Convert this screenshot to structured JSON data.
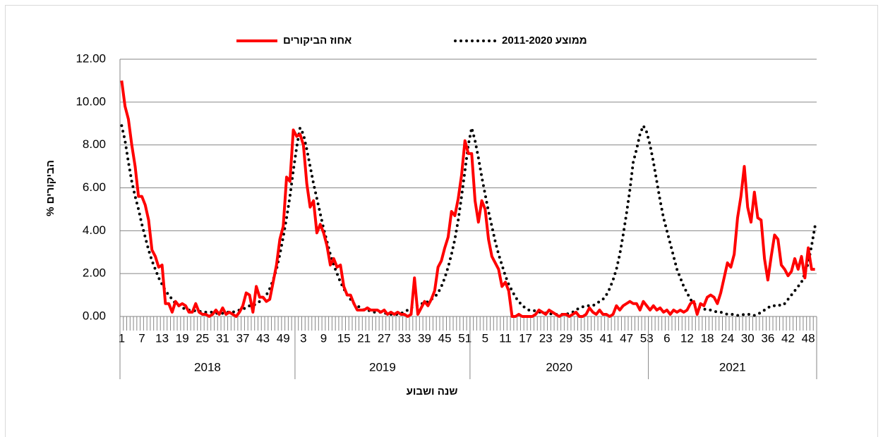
{
  "chart_data": {
    "type": "line",
    "legend_position": "top",
    "ylabel": "% הביקורים",
    "xlabel": "שנה  ושבוע",
    "ylim": [
      0,
      12
    ],
    "yticks": [
      {
        "value": 0,
        "label": "0.00"
      },
      {
        "value": 2,
        "label": "2.00"
      },
      {
        "value": 4,
        "label": "4.00"
      },
      {
        "value": 6,
        "label": "6.00"
      },
      {
        "value": 8,
        "label": "8.00"
      },
      {
        "value": 10,
        "label": "10.00"
      },
      {
        "value": 12,
        "label": "12.00"
      }
    ],
    "grid": true,
    "groups": [
      {
        "label": "2018",
        "categories": [
          1,
          null,
          null,
          null,
          null,
          null,
          7,
          null,
          null,
          null,
          null,
          null,
          13,
          null,
          null,
          null,
          null,
          null,
          19,
          null,
          null,
          null,
          null,
          null,
          25,
          null,
          null,
          null,
          null,
          null,
          31,
          null,
          null,
          null,
          null,
          null,
          37,
          null,
          null,
          null,
          null,
          null,
          43,
          null,
          null,
          null,
          null,
          null,
          49,
          null,
          null,
          null
        ]
      },
      {
        "label": "2019",
        "categories": [
          null,
          null,
          3,
          null,
          null,
          null,
          null,
          null,
          9,
          null,
          null,
          null,
          null,
          null,
          15,
          null,
          null,
          null,
          null,
          null,
          21,
          null,
          null,
          null,
          null,
          null,
          27,
          null,
          null,
          null,
          null,
          null,
          33,
          null,
          null,
          null,
          null,
          null,
          39,
          null,
          null,
          null,
          null,
          null,
          45,
          null,
          null,
          null,
          null,
          null,
          51,
          null
        ]
      },
      {
        "label": "2020",
        "categories": [
          null,
          null,
          null,
          null,
          5,
          null,
          null,
          null,
          null,
          null,
          11,
          null,
          null,
          null,
          null,
          null,
          17,
          null,
          null,
          null,
          null,
          null,
          23,
          null,
          null,
          null,
          null,
          null,
          29,
          null,
          null,
          null,
          null,
          null,
          35,
          null,
          null,
          null,
          null,
          null,
          41,
          null,
          null,
          null,
          null,
          null,
          47,
          null,
          null,
          null,
          null,
          null,
          53
        ]
      },
      {
        "label": "2021",
        "categories": [
          null,
          null,
          null,
          null,
          null,
          6,
          null,
          null,
          null,
          null,
          null,
          12,
          null,
          null,
          null,
          null,
          null,
          18,
          null,
          null,
          null,
          null,
          null,
          24,
          null,
          null,
          null,
          null,
          null,
          30,
          null,
          null,
          null,
          null,
          null,
          36,
          null,
          null,
          null,
          null,
          null,
          42,
          null,
          null,
          null,
          null,
          null,
          48,
          null,
          null
        ]
      }
    ],
    "series": [
      {
        "name": "אחוז הביקורים",
        "color": "#ff0000",
        "style": "solid",
        "values": [
          11.0,
          9.8,
          9.2,
          8.0,
          7.0,
          5.6,
          5.6,
          5.2,
          4.5,
          3.1,
          2.8,
          2.3,
          2.4,
          0.6,
          0.6,
          0.2,
          0.7,
          0.5,
          0.6,
          0.5,
          0.2,
          0.2,
          0.6,
          0.2,
          0.1,
          0.1,
          0.0,
          0.1,
          0.3,
          0.1,
          0.4,
          0.1,
          0.2,
          0.1,
          0.0,
          0.2,
          0.5,
          1.1,
          1.0,
          0.2,
          1.4,
          0.9,
          0.9,
          0.7,
          0.8,
          1.6,
          2.4,
          3.6,
          4.2,
          6.5,
          6.3,
          8.7,
          8.4,
          8.5,
          8.0,
          6.2,
          5.1,
          5.4,
          3.9,
          4.3,
          3.9,
          3.3,
          2.4,
          2.7,
          2.3,
          2.4,
          1.4,
          1.0,
          1.0,
          0.6,
          0.3,
          0.3,
          0.3,
          0.4,
          0.3,
          0.3,
          0.3,
          0.2,
          0.3,
          0.1,
          0.2,
          0.1,
          0.2,
          0.1,
          0.1,
          0.0,
          0.1,
          1.8,
          0.1,
          0.4,
          0.7,
          0.5,
          0.8,
          1.2,
          2.3,
          2.6,
          3.2,
          3.7,
          4.9,
          4.7,
          5.5,
          6.6,
          8.2,
          7.6,
          7.6,
          5.4,
          4.4,
          5.4,
          5.0,
          3.6,
          2.8,
          2.5,
          2.2,
          1.4,
          1.6,
          1.2,
          0.0,
          0.0,
          0.1,
          0.0,
          0.0,
          0.0,
          0.0,
          0.1,
          0.3,
          0.2,
          0.1,
          0.3,
          0.2,
          0.1,
          0.0,
          0.1,
          0.1,
          0.0,
          0.1,
          0.2,
          0.0,
          0.0,
          0.1,
          0.4,
          0.2,
          0.1,
          0.3,
          0.1,
          0.1,
          0.0,
          0.1,
          0.5,
          0.3,
          0.5,
          0.6,
          0.7,
          0.6,
          0.6,
          0.3,
          0.7,
          0.5,
          0.3,
          0.5,
          0.3,
          0.4,
          0.2,
          0.3,
          0.1,
          0.3,
          0.2,
          0.3,
          0.2,
          0.3,
          0.6,
          0.7,
          0.1,
          0.6,
          0.5,
          0.9,
          1.0,
          0.9,
          0.6,
          1.1,
          1.8,
          2.5,
          2.3,
          2.9,
          4.6,
          5.6,
          7.0,
          5.1,
          4.4,
          5.8,
          4.6,
          4.5,
          2.7,
          1.7,
          2.8,
          3.8,
          3.6,
          2.4,
          2.2,
          1.9,
          2.1,
          2.7,
          2.2,
          2.8,
          1.8,
          3.2,
          2.2,
          2.2
        ]
      },
      {
        "name": "ממוצע 2011-2020",
        "color": "#000000",
        "style": "dotted",
        "values": [
          8.9,
          8.2,
          7.2,
          6.3,
          5.6,
          5.0,
          4.3,
          3.7,
          3.1,
          2.6,
          2.2,
          1.8,
          1.5,
          1.2,
          1.0,
          0.8,
          0.6,
          0.5,
          0.4,
          0.35,
          0.3,
          0.3,
          0.25,
          0.25,
          0.2,
          0.2,
          0.2,
          0.2,
          0.15,
          0.15,
          0.15,
          0.2,
          0.2,
          0.2,
          0.25,
          0.3,
          0.35,
          0.4,
          0.5,
          0.5,
          0.6,
          0.7,
          0.8,
          1.0,
          1.3,
          1.7,
          2.2,
          2.9,
          3.7,
          4.6,
          5.6,
          6.8,
          7.9,
          8.8,
          8.5,
          7.8,
          7.0,
          6.2,
          5.5,
          4.8,
          4.1,
          3.5,
          2.9,
          2.4,
          2.0,
          1.6,
          1.3,
          1.0,
          0.8,
          0.6,
          0.5,
          0.4,
          0.3,
          0.3,
          0.25,
          0.2,
          0.2,
          0.2,
          0.15,
          0.15,
          0.1,
          0.1,
          0.1,
          0.15,
          0.2,
          0.3,
          0.4,
          0.5,
          0.5,
          0.6,
          0.6,
          0.7,
          0.8,
          0.9,
          1.1,
          1.4,
          1.8,
          2.3,
          2.9,
          3.6,
          4.5,
          5.6,
          6.8,
          8.0,
          8.8,
          8.2,
          7.4,
          6.5,
          5.7,
          4.9,
          4.2,
          3.5,
          2.9,
          2.4,
          1.9,
          1.5,
          1.2,
          0.9,
          0.7,
          0.5,
          0.4,
          0.3,
          0.3,
          0.25,
          0.2,
          0.2,
          0.15,
          0.15,
          0.1,
          0.1,
          0.1,
          0.1,
          0.1,
          0.15,
          0.2,
          0.3,
          0.4,
          0.45,
          0.5,
          0.5,
          0.5,
          0.6,
          0.7,
          0.8,
          1.0,
          1.3,
          1.7,
          2.2,
          2.9,
          3.8,
          4.8,
          5.9,
          7.2,
          7.8,
          8.5,
          8.9,
          8.6,
          8.0,
          7.2,
          6.3,
          5.4,
          4.6,
          4.0,
          3.4,
          2.8,
          2.2,
          1.8,
          1.4,
          1.1,
          0.8,
          0.6,
          0.5,
          0.4,
          0.35,
          0.3,
          0.3,
          0.25,
          0.2,
          0.2,
          0.15,
          0.1,
          0.1,
          0.1,
          0.05,
          0.05,
          0.1,
          0.1,
          0.1,
          0.05,
          0.1,
          0.2,
          0.3,
          0.4,
          0.5,
          0.5,
          0.55,
          0.5,
          0.6,
          0.8,
          1.0,
          1.2,
          1.4,
          1.6,
          2.0,
          2.5,
          3.3,
          4.2
        ]
      }
    ]
  }
}
